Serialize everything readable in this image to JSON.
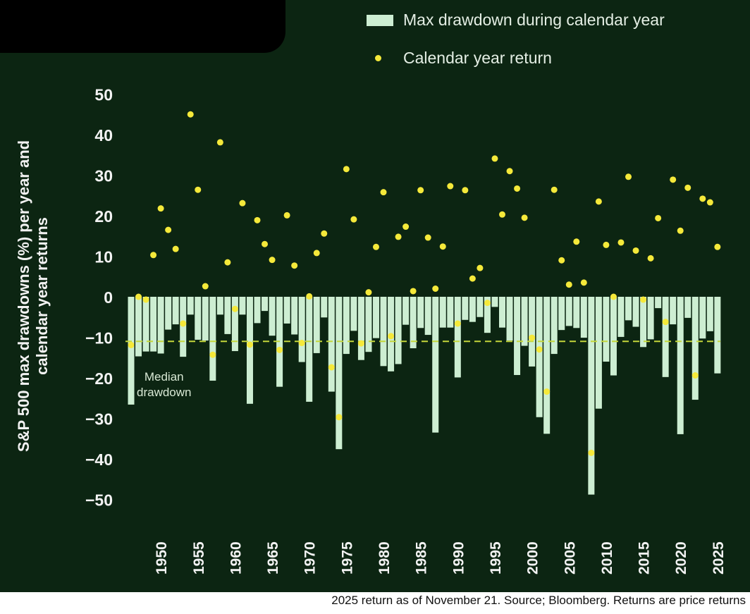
{
  "colors": {
    "background": "#0c2512",
    "bar": "#cdeed2",
    "dot": "#f5e93a",
    "median_line": "#c4d73a",
    "text": "#f2f2f2"
  },
  "legend": {
    "drawdown_label": "Max drawdown during calendar year",
    "return_label": "Calendar year return"
  },
  "median_label": "Median\ndrawdown",
  "footer": {
    "source_note": "2025 return as of November 21. Source; Bloomberg. Returns are price returns"
  },
  "chart_data": {
    "type": "bar",
    "title": "",
    "ylabel": "S&P 500 max drawdowns (%) per year and calendar year returns",
    "xlabel": "",
    "ylim": [
      -50,
      50
    ],
    "yticks": [
      50,
      40,
      30,
      20,
      10,
      0,
      -10,
      -20,
      -30,
      -40,
      -50
    ],
    "xticks": [
      1950,
      1955,
      1960,
      1965,
      1970,
      1975,
      1980,
      1985,
      1990,
      1995,
      2000,
      2005,
      2010,
      2015,
      2020,
      2025
    ],
    "median_drawdown": -11,
    "grid": false,
    "legend_position": "top-right",
    "x": [
      1946,
      1947,
      1948,
      1949,
      1950,
      1951,
      1952,
      1953,
      1954,
      1955,
      1956,
      1957,
      1958,
      1959,
      1960,
      1961,
      1962,
      1963,
      1964,
      1965,
      1966,
      1967,
      1968,
      1969,
      1970,
      1971,
      1972,
      1973,
      1974,
      1975,
      1976,
      1977,
      1978,
      1979,
      1980,
      1981,
      1982,
      1983,
      1984,
      1985,
      1986,
      1987,
      1988,
      1989,
      1990,
      1991,
      1992,
      1993,
      1994,
      1995,
      1996,
      1997,
      1998,
      1999,
      2000,
      2001,
      2002,
      2003,
      2004,
      2005,
      2006,
      2007,
      2008,
      2009,
      2010,
      2011,
      2012,
      2013,
      2014,
      2015,
      2016,
      2017,
      2018,
      2019,
      2020,
      2021,
      2022,
      2023,
      2024,
      2025
    ],
    "series": [
      {
        "name": "Max drawdown during calendar year",
        "type": "bar",
        "values": [
          -26.6,
          -14.7,
          -13.5,
          -13.5,
          -14,
          -8.1,
          -6.8,
          -14.8,
          -4.4,
          -10.6,
          -10.8,
          -20.7,
          -4.4,
          -9.2,
          -13.4,
          -4.4,
          -26.4,
          -6.5,
          -3.5,
          -9.6,
          -22.2,
          -6.6,
          -9.3,
          -16.1,
          -25.9,
          -13.9,
          -5.1,
          -23.4,
          -37.6,
          -14.1,
          -8.4,
          -15.6,
          -13.6,
          -10.2,
          -17.1,
          -18.4,
          -16.6,
          -6.9,
          -12.7,
          -7.7,
          -9.4,
          -33.5,
          -7.6,
          -7.6,
          -19.9,
          -5.7,
          -6.2,
          -5,
          -8.9,
          -2.5,
          -7.6,
          -10.8,
          -19.3,
          -12.1,
          -17.2,
          -29.7,
          -33.8,
          -14.1,
          -8.2,
          -7.2,
          -7.7,
          -10.1,
          -48.8,
          -27.6,
          -16,
          -19.4,
          -9.9,
          -5.8,
          -7.4,
          -12.4,
          -10.5,
          -2.8,
          -19.8,
          -6.8,
          -33.9,
          -5.2,
          -25.4,
          -10.3,
          -8.5,
          -18.9
        ]
      },
      {
        "name": "Calendar year return",
        "type": "scatter",
        "values": [
          -11.9,
          0,
          -0.7,
          10.3,
          21.8,
          16.5,
          11.8,
          -6.6,
          45,
          26.4,
          2.6,
          -14.3,
          38.1,
          8.5,
          -3,
          23.1,
          -11.8,
          18.9,
          13,
          9.1,
          -13.1,
          20.1,
          7.7,
          -11.4,
          0.1,
          10.8,
          15.6,
          -17.4,
          -29.7,
          31.5,
          19.1,
          -11.5,
          1.1,
          12.3,
          25.8,
          -9.7,
          14.8,
          17.3,
          1.4,
          26.3,
          14.6,
          2,
          12.4,
          27.3,
          -6.6,
          26.3,
          4.5,
          7.1,
          -1.5,
          34.1,
          20.3,
          31,
          26.7,
          19.5,
          -10.1,
          -13,
          -23.4,
          26.4,
          9,
          3,
          13.6,
          3.5,
          -38.5,
          23.5,
          12.8,
          0,
          13.4,
          29.6,
          11.4,
          -0.7,
          9.5,
          19.4,
          -6.2,
          28.9,
          16.3,
          26.9,
          -19.4,
          24.2,
          23.3,
          12.3
        ]
      }
    ]
  }
}
